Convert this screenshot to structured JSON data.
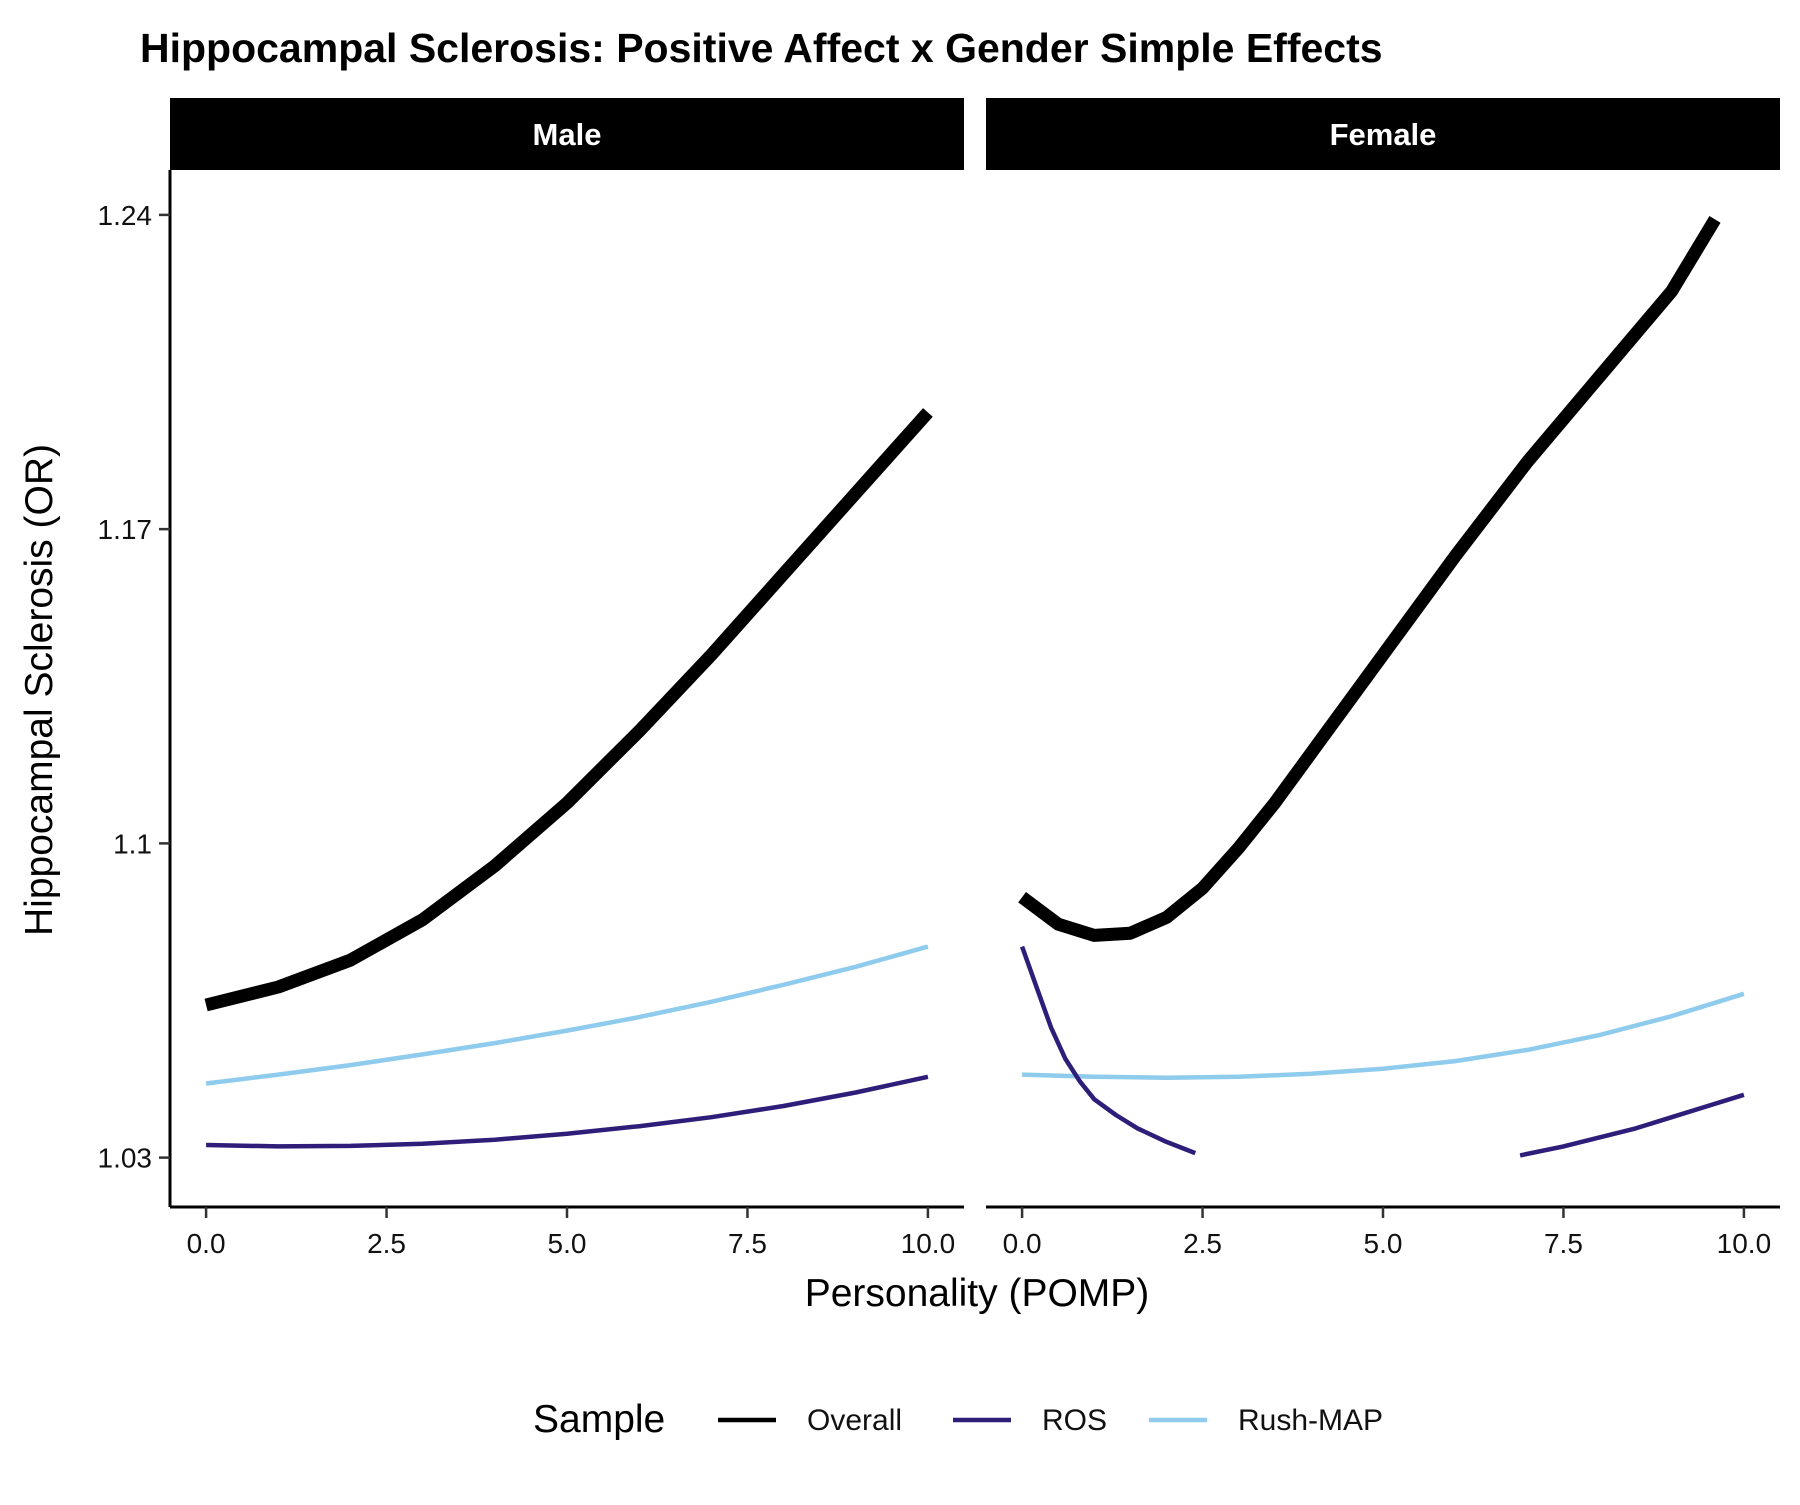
{
  "chart_data": {
    "type": "line",
    "title": "Hippocampal Sclerosis: Positive Affect x Gender Simple Effects",
    "xlabel": "Personality (POMP)",
    "ylabel": "Hippocampal Sclerosis (OR)",
    "xlim": [
      -0.5,
      10.5
    ],
    "ylim": [
      1.019,
      1.25
    ],
    "x_ticks": [
      "0.0",
      "2.5",
      "5.0",
      "7.5",
      "10.0"
    ],
    "x_tick_values": [
      0,
      2.5,
      5,
      7.5,
      10
    ],
    "y_ticks": [
      "1.03",
      "1.1",
      "1.17",
      "1.24"
    ],
    "y_tick_values": [
      1.03,
      1.1,
      1.17,
      1.24
    ],
    "grid": false,
    "legend": {
      "title": "Sample",
      "position": "bottom",
      "entries": [
        "Overall",
        "ROS",
        "Rush-MAP"
      ]
    },
    "colors": {
      "Overall": "#000000",
      "ROS": "#2e1e7a",
      "Rush-MAP": "#8ecbed"
    },
    "panels": [
      {
        "label": "Male",
        "series": [
          {
            "name": "Overall",
            "x": [
              0,
              1,
              2,
              3,
              4,
              5,
              6,
              7,
              8,
              9,
              10
            ],
            "y": [
              1.064,
              1.068,
              1.074,
              1.083,
              1.095,
              1.109,
              1.125,
              1.142,
              1.16,
              1.178,
              1.196
            ]
          },
          {
            "name": "ROS",
            "x": [
              0,
              1,
              2,
              3,
              4,
              5,
              6,
              7,
              8,
              9,
              10
            ],
            "y": [
              1.0328,
              1.0325,
              1.0326,
              1.0331,
              1.034,
              1.0353,
              1.037,
              1.039,
              1.0415,
              1.0445,
              1.048
            ]
          },
          {
            "name": "Rush-MAP",
            "x": [
              0,
              1,
              2,
              3,
              4,
              5,
              6,
              7,
              8,
              9,
              10
            ],
            "y": [
              1.0465,
              1.0485,
              1.0506,
              1.053,
              1.0555,
              1.0583,
              1.0613,
              1.0647,
              1.0685,
              1.0725,
              1.077
            ]
          }
        ]
      },
      {
        "label": "Female",
        "series": [
          {
            "name": "Overall",
            "x": [
              0,
              0.5,
              1,
              1.5,
              2,
              2.5,
              3,
              3.5,
              4,
              5,
              6,
              7,
              8,
              9,
              9.6
            ],
            "y": [
              1.088,
              1.082,
              1.0795,
              1.08,
              1.0835,
              1.09,
              1.099,
              1.109,
              1.12,
              1.142,
              1.164,
              1.185,
              1.204,
              1.223,
              1.239
            ]
          },
          {
            "name": "ROS",
            "x": [
              0,
              0.2,
              0.4,
              0.6,
              0.8,
              1,
              1.3,
              1.6,
              2,
              2.4
            ],
            "y": [
              1.077,
              1.068,
              1.059,
              1.052,
              1.047,
              1.043,
              1.0395,
              1.0365,
              1.0335,
              1.031
            ]
          },
          {
            "name": "ROS",
            "x": [
              6.9,
              7.5,
              8,
              8.5,
              9,
              9.5,
              10
            ],
            "y": [
              1.0305,
              1.0325,
              1.0345,
              1.0365,
              1.039,
              1.0415,
              1.044
            ]
          },
          {
            "name": "Rush-MAP",
            "x": [
              0,
              1,
              2,
              3,
              4,
              5,
              6,
              7,
              8,
              9,
              10
            ],
            "y": [
              1.0485,
              1.048,
              1.0478,
              1.048,
              1.0487,
              1.0498,
              1.0515,
              1.054,
              1.0573,
              1.0615,
              1.0665
            ]
          }
        ]
      }
    ]
  }
}
